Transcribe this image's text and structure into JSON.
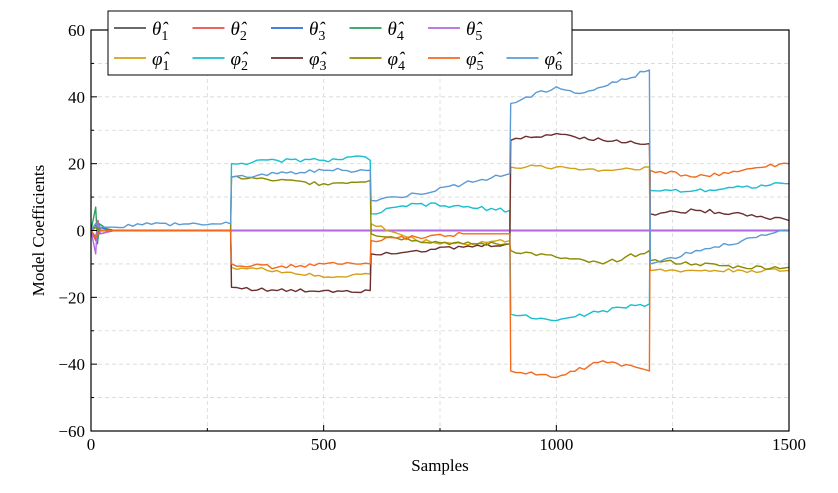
{
  "chart_data": {
    "type": "line",
    "title": "",
    "xlabel": "Samples",
    "ylabel": "Model Coefficients",
    "xlim": [
      0,
      1500
    ],
    "ylim": [
      -60,
      60
    ],
    "xticks": [
      0,
      500,
      1000,
      1500
    ],
    "xtick_labels": [
      "0",
      "500",
      "1000",
      "1500"
    ],
    "yticks": [
      -60,
      -40,
      -20,
      0,
      20,
      40,
      60
    ],
    "ytick_labels": [
      "−60",
      "−40",
      "−20",
      "0",
      "20",
      "40",
      "60"
    ],
    "grid": true,
    "legend_position": "top-left",
    "series": [
      {
        "name": "θ̂1",
        "sym": "θ̂",
        "sub": "1",
        "color": "#555555",
        "points": [
          [
            0,
            0
          ],
          [
            10,
            2
          ],
          [
            15,
            -2
          ],
          [
            20,
            1
          ],
          [
            50,
            0
          ],
          [
            1500,
            0
          ]
        ]
      },
      {
        "name": "θ̂2",
        "sym": "θ̂",
        "sub": "2",
        "color": "#e8504a",
        "points": [
          [
            0,
            0
          ],
          [
            10,
            -3
          ],
          [
            15,
            3
          ],
          [
            20,
            -1
          ],
          [
            50,
            0
          ],
          [
            1500,
            0
          ]
        ]
      },
      {
        "name": "θ̂3",
        "sym": "θ̂",
        "sub": "3",
        "color": "#2a6fdb",
        "points": [
          [
            0,
            0
          ],
          [
            10,
            -2
          ],
          [
            15,
            1
          ],
          [
            50,
            0
          ],
          [
            1500,
            0
          ]
        ]
      },
      {
        "name": "θ̂4",
        "sym": "θ̂",
        "sub": "4",
        "color": "#2ca05a",
        "points": [
          [
            0,
            0
          ],
          [
            10,
            7
          ],
          [
            14,
            -4
          ],
          [
            18,
            2
          ],
          [
            40,
            0
          ],
          [
            1500,
            0
          ]
        ]
      },
      {
        "name": "θ̂5",
        "sym": "θ̂",
        "sub": "5",
        "color": "#b36ae2",
        "points": [
          [
            0,
            0
          ],
          [
            10,
            -7
          ],
          [
            14,
            3
          ],
          [
            20,
            -1
          ],
          [
            50,
            0
          ],
          [
            1500,
            0
          ]
        ]
      },
      {
        "name": "φ̂1",
        "sym": "φ̂",
        "sub": "1",
        "color": "#d4a017",
        "points": [
          [
            0,
            0
          ],
          [
            10,
            1
          ],
          [
            20,
            0
          ],
          [
            300,
            0
          ],
          [
            302,
            -11
          ],
          [
            400,
            -12
          ],
          [
            500,
            -14
          ],
          [
            600,
            -13
          ],
          [
            602,
            2
          ],
          [
            700,
            -3
          ],
          [
            800,
            -4
          ],
          [
            900,
            -3
          ],
          [
            902,
            19
          ],
          [
            1000,
            19
          ],
          [
            1100,
            18
          ],
          [
            1200,
            19
          ],
          [
            1202,
            -12
          ],
          [
            1300,
            -12
          ],
          [
            1400,
            -12
          ],
          [
            1500,
            -12
          ]
        ]
      },
      {
        "name": "φ̂2",
        "sym": "φ̂",
        "sub": "2",
        "color": "#17becf",
        "points": [
          [
            0,
            0
          ],
          [
            10,
            1
          ],
          [
            20,
            0
          ],
          [
            300,
            0
          ],
          [
            302,
            20
          ],
          [
            400,
            21
          ],
          [
            500,
            21
          ],
          [
            590,
            22
          ],
          [
            600,
            21
          ],
          [
            602,
            5
          ],
          [
            700,
            8
          ],
          [
            800,
            7
          ],
          [
            900,
            6
          ],
          [
            902,
            -25
          ],
          [
            1000,
            -27
          ],
          [
            1100,
            -24
          ],
          [
            1200,
            -22
          ],
          [
            1202,
            12
          ],
          [
            1300,
            12
          ],
          [
            1400,
            13
          ],
          [
            1500,
            14
          ]
        ]
      },
      {
        "name": "φ̂3",
        "sym": "φ̂",
        "sub": "3",
        "color": "#6b2e2e",
        "points": [
          [
            0,
            0
          ],
          [
            10,
            1
          ],
          [
            20,
            0
          ],
          [
            300,
            0
          ],
          [
            302,
            -17
          ],
          [
            400,
            -18
          ],
          [
            500,
            -18
          ],
          [
            600,
            -18
          ],
          [
            602,
            -7
          ],
          [
            700,
            -6
          ],
          [
            800,
            -5
          ],
          [
            900,
            -4
          ],
          [
            902,
            27
          ],
          [
            1000,
            29
          ],
          [
            1100,
            27
          ],
          [
            1200,
            26
          ],
          [
            1202,
            5
          ],
          [
            1300,
            6
          ],
          [
            1400,
            5
          ],
          [
            1500,
            3
          ]
        ]
      },
      {
        "name": "φ̂4",
        "sym": "φ̂",
        "sub": "4",
        "color": "#8b8b00",
        "points": [
          [
            0,
            0
          ],
          [
            10,
            1
          ],
          [
            20,
            0
          ],
          [
            300,
            0
          ],
          [
            302,
            16
          ],
          [
            400,
            15
          ],
          [
            500,
            14
          ],
          [
            600,
            15
          ],
          [
            602,
            -1
          ],
          [
            700,
            -3
          ],
          [
            800,
            -4
          ],
          [
            900,
            -4
          ],
          [
            902,
            -6
          ],
          [
            1000,
            -8
          ],
          [
            1100,
            -10
          ],
          [
            1200,
            -6
          ],
          [
            1202,
            -9
          ],
          [
            1300,
            -10
          ],
          [
            1400,
            -11
          ],
          [
            1500,
            -11
          ]
        ]
      },
      {
        "name": "φ̂5",
        "sym": "φ̂",
        "sub": "5",
        "color": "#f26b1d",
        "points": [
          [
            0,
            0
          ],
          [
            10,
            -2
          ],
          [
            20,
            0
          ],
          [
            300,
            0
          ],
          [
            302,
            -10
          ],
          [
            400,
            -11
          ],
          [
            500,
            -10
          ],
          [
            600,
            -10
          ],
          [
            602,
            -3
          ],
          [
            700,
            -2
          ],
          [
            800,
            -1
          ],
          [
            900,
            -1
          ],
          [
            902,
            -42
          ],
          [
            1000,
            -44
          ],
          [
            1100,
            -39
          ],
          [
            1200,
            -42
          ],
          [
            1202,
            18
          ],
          [
            1300,
            16
          ],
          [
            1400,
            18
          ],
          [
            1500,
            20
          ]
        ]
      },
      {
        "name": "φ̂6",
        "sym": "φ̂",
        "sub": "6",
        "color": "#5b9bd5",
        "points": [
          [
            0,
            0
          ],
          [
            10,
            2
          ],
          [
            20,
            1
          ],
          [
            50,
            1
          ],
          [
            100,
            2
          ],
          [
            300,
            2
          ],
          [
            302,
            16
          ],
          [
            400,
            17
          ],
          [
            500,
            18
          ],
          [
            600,
            18
          ],
          [
            602,
            9
          ],
          [
            700,
            11
          ],
          [
            800,
            14
          ],
          [
            900,
            17
          ],
          [
            902,
            38
          ],
          [
            1000,
            43
          ],
          [
            1050,
            41
          ],
          [
            1100,
            43
          ],
          [
            1200,
            48
          ],
          [
            1202,
            -10
          ],
          [
            1300,
            -6
          ],
          [
            1400,
            -3
          ],
          [
            1500,
            0
          ]
        ]
      }
    ]
  }
}
